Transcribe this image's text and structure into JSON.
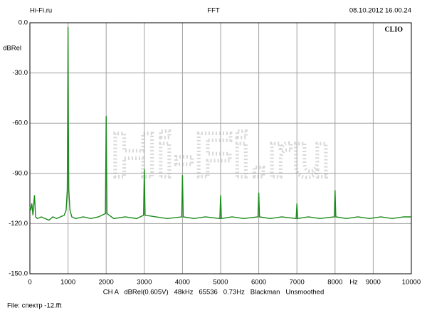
{
  "header": {
    "site": "Hi-Fi.ru",
    "title": "FFT",
    "timestamp": "08.10.2012 16.00.24"
  },
  "chart_data": {
    "type": "line",
    "brand": "CLIO",
    "y_label": "dBRel",
    "x_unit": "Hz",
    "settings": "CH A   dBRel(0.605V)   48kHz   65536   0.73Hz   Blackman   Unsmoothed",
    "file": "File: спектр -12.fft",
    "xlim": [
      0,
      10000
    ],
    "xticks": [
      0,
      1000,
      2000,
      3000,
      4000,
      5000,
      6000,
      7000,
      8000,
      9000,
      10000
    ],
    "ylim": [
      -150,
      0
    ],
    "yticks": [
      {
        "value": 0,
        "label": "0.0"
      },
      {
        "value": -30,
        "label": "-30.0"
      },
      {
        "value": -60,
        "label": "-60.0"
      },
      {
        "value": -90,
        "label": "-90.0"
      },
      {
        "value": -120,
        "label": "-120.0"
      },
      {
        "value": -150,
        "label": "-150.0"
      }
    ],
    "grid": true,
    "series": [
      {
        "color": "#1a8a1a",
        "x": [
          0,
          20,
          50,
          80,
          120,
          150,
          200,
          300,
          400,
          500,
          600,
          700,
          800,
          900,
          950,
          980,
          990,
          1000,
          1010,
          1020,
          1050,
          1100,
          1200,
          1400,
          1600,
          1800,
          1980,
          2000,
          2020,
          2200,
          2500,
          2800,
          2980,
          3000,
          3020,
          3300,
          3600,
          3980,
          4000,
          4020,
          4300,
          4600,
          4980,
          5000,
          5020,
          5300,
          5600,
          5980,
          6000,
          6020,
          6300,
          6600,
          6980,
          7000,
          7020,
          7300,
          7600,
          7980,
          8000,
          8020,
          8300,
          8600,
          8900,
          9200,
          9500,
          9800,
          10000
        ],
        "values": [
          -110,
          -112,
          -108,
          -115,
          -103,
          -116,
          -117,
          -116,
          -117,
          -118,
          -116,
          -117,
          -116,
          -115,
          -112,
          -100,
          -60,
          -2.5,
          -60,
          -100,
          -112,
          -116,
          -117,
          -116,
          -117,
          -116,
          -114,
          -55.7,
          -114,
          -117,
          -116,
          -117,
          -115,
          -87.5,
          -115,
          -116,
          -117,
          -116,
          -91,
          -116,
          -117,
          -116,
          -117,
          -103,
          -117,
          -116,
          -117,
          -116,
          -101.5,
          -116,
          -117,
          -116,
          -117,
          -108,
          -117,
          -116,
          -117,
          -116,
          -100,
          -116,
          -117,
          -116,
          -117,
          -116,
          -117,
          -116,
          -116
        ]
      }
    ]
  }
}
